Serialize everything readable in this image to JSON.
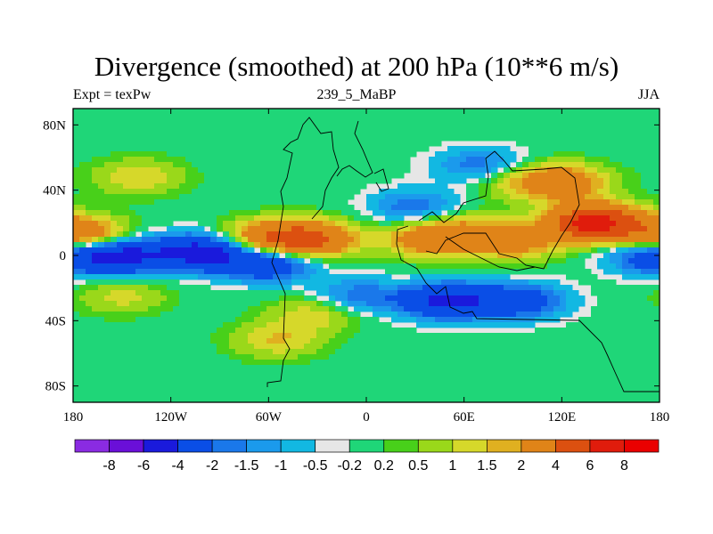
{
  "chart_data": {
    "type": "heatmap",
    "title": "Divergence (smoothed) at 200 hPa (10**6 m/s)",
    "left_label": "Expt = texPw",
    "center_label": "239_5_MaBP",
    "right_label": "JJA",
    "x_ticks": [
      "180",
      "120W",
      "60W",
      "0",
      "60E",
      "120E",
      "180"
    ],
    "x_tick_values": [
      -180,
      -120,
      -60,
      0,
      60,
      120,
      180
    ],
    "y_ticks": [
      "80N",
      "40N",
      "0",
      "40S",
      "80S"
    ],
    "y_tick_values": [
      80,
      40,
      0,
      -40,
      -80
    ],
    "xlim": [
      -180,
      180
    ],
    "ylim": [
      -90,
      90
    ],
    "colorbar": {
      "labels": [
        "-8",
        "-6",
        "-4",
        "-2",
        "-1.5",
        "-1",
        "-0.5",
        "-0.2",
        "0.2",
        "0.5",
        "1",
        "1.5",
        "2",
        "4",
        "6",
        "8"
      ],
      "levels": [
        -8,
        -6,
        -4,
        -2,
        -1.5,
        -1,
        -0.5,
        -0.2,
        0.2,
        0.5,
        1,
        1.5,
        2,
        4,
        6,
        8
      ],
      "colors": [
        "#8a2be2",
        "#6a0fd8",
        "#1a1adc",
        "#0a4ee6",
        "#1a78ea",
        "#1b9aec",
        "#12b8e2",
        "#e6e6e6",
        "#1fd678",
        "#48d01a",
        "#9ad81a",
        "#d6d82a",
        "#e0b020",
        "#e08418",
        "#dc5010",
        "#e01c0c",
        "#ea0000"
      ]
    },
    "field_features": [
      {
        "lon": -150,
        "lat": 0,
        "value": -4.5
      },
      {
        "lon": -100,
        "lat": 2,
        "value": -5
      },
      {
        "lon": -60,
        "lat": -5,
        "value": -3.5
      },
      {
        "lon": 50,
        "lat": -28,
        "value": -4.5
      },
      {
        "lon": 95,
        "lat": -28,
        "value": -3
      },
      {
        "lon": 175,
        "lat": 0,
        "value": -3
      },
      {
        "lon": -5,
        "lat": -25,
        "value": -2
      },
      {
        "lon": 30,
        "lat": 30,
        "value": -2
      },
      {
        "lon": 70,
        "lat": 55,
        "value": -2
      },
      {
        "lon": 140,
        "lat": 20,
        "value": 7
      },
      {
        "lon": -35,
        "lat": 10,
        "value": 4.5
      },
      {
        "lon": -175,
        "lat": 12,
        "value": 4
      },
      {
        "lon": 40,
        "lat": 10,
        "value": 3
      },
      {
        "lon": 90,
        "lat": 8,
        "value": 2.5
      },
      {
        "lon": -65,
        "lat": 10,
        "value": 3
      },
      {
        "lon": 120,
        "lat": 45,
        "value": 3
      },
      {
        "lon": -140,
        "lat": 48,
        "value": 1.5
      },
      {
        "lon": -150,
        "lat": -25,
        "value": 1.2
      },
      {
        "lon": -30,
        "lat": -35,
        "value": 1.5
      },
      {
        "lon": -55,
        "lat": -52,
        "value": 1.5
      },
      {
        "lon": 60,
        "lat": 18,
        "value": 1.2
      },
      {
        "lon": 90,
        "lat": 46,
        "value": 1.2
      }
    ]
  }
}
